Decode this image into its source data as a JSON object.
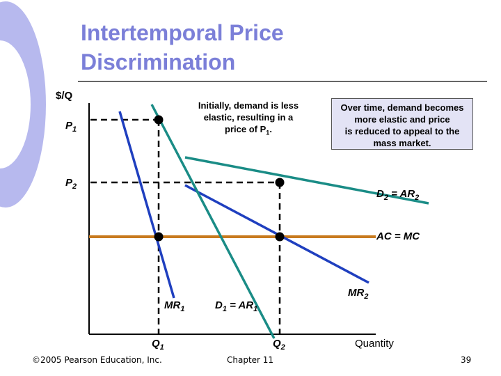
{
  "slide": {
    "title": "Intertemporal Price\nDiscrimination",
    "callout_left": "Initially, demand is less\nelastic, resulting in a\nprice of P",
    "callout_left_sub": "1",
    "callout_left_end": ".",
    "callout_right": "Over time, demand becomes\nmore elastic and price\nis reduced to appeal to the\nmass market.",
    "footer_left": "©2005 Pearson Education, Inc.",
    "footer_center": "Chapter 11",
    "page_number": "39"
  },
  "chart_data": {
    "type": "line",
    "ylabel": "$/Q",
    "xlabel": "Quantity",
    "y_ticks": [
      {
        "base": "P",
        "sub": "1"
      },
      {
        "base": "P",
        "sub": "2"
      }
    ],
    "x_ticks": [
      {
        "base": "Q",
        "sub": "1"
      },
      {
        "base": "Q",
        "sub": "2"
      }
    ],
    "curves": [
      {
        "base": "D",
        "sub": "2",
        "suffix": " = AR",
        "suffix_sub": "2",
        "color": "#1a8c86"
      },
      {
        "base": "MR",
        "sub": "2",
        "suffix": "",
        "suffix_sub": "",
        "color": "#1f3fbf"
      },
      {
        "base": "D",
        "sub": "1",
        "suffix": " = AR",
        "suffix_sub": "1",
        "color": "#1a8c86"
      },
      {
        "base": "MR",
        "sub": "1",
        "suffix": "",
        "suffix_sub": "",
        "color": "#1f3fbf"
      },
      {
        "base": "AC = MC",
        "sub": "",
        "suffix": "",
        "suffix_sub": "",
        "color": "#c87a1e"
      }
    ],
    "colors": {
      "title": "#7b7fd8",
      "demand": "#1a8c86",
      "marginal_revenue": "#1f3fbf",
      "cost": "#c87a1e",
      "callout_fill": "#e3e3f5"
    }
  }
}
